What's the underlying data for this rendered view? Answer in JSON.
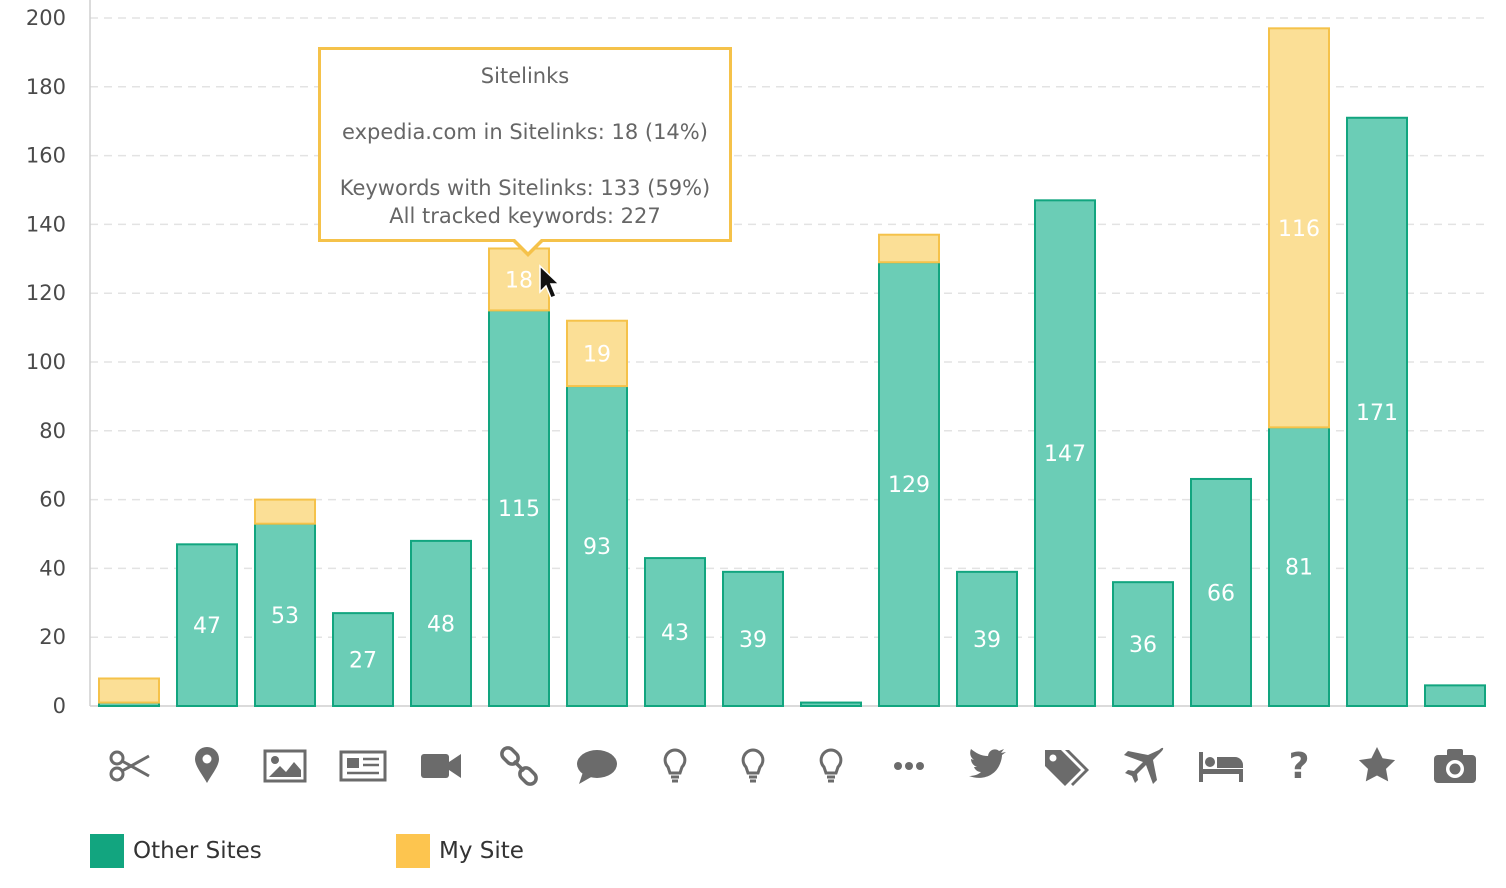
{
  "chart_data": {
    "type": "bar",
    "stacked": true,
    "categories": [
      "scissors-icon",
      "map-marker-icon",
      "image-icon",
      "newspaper-icon",
      "video-camera-icon",
      "link-icon",
      "comment-icon",
      "lightbulb-icon",
      "lightbulb-icon",
      "lightbulb-icon",
      "ellipsis-icon",
      "twitter-icon",
      "tags-icon",
      "plane-icon",
      "bed-icon",
      "question-icon",
      "star-icon",
      "camera-icon"
    ],
    "series": [
      {
        "name": "Other Sites",
        "color": "#6bcdb6",
        "stroke": "#12a57f",
        "values": [
          1,
          47,
          53,
          27,
          48,
          115,
          93,
          43,
          39,
          1,
          129,
          39,
          147,
          36,
          66,
          81,
          171,
          6
        ],
        "labels": [
          "",
          "47",
          "53",
          "27",
          "48",
          "115",
          "93",
          "43",
          "39",
          "",
          "129",
          "39",
          "147",
          "36",
          "66",
          "81",
          "171",
          ""
        ]
      },
      {
        "name": "My Site",
        "color": "#fbdf96",
        "stroke": "#f5c24a",
        "values": [
          7,
          0,
          7,
          0,
          0,
          18,
          19,
          0,
          0,
          0,
          8,
          0,
          0,
          0,
          0,
          116,
          0,
          0
        ],
        "labels": [
          "",
          "",
          "",
          "",
          "",
          "18",
          "19",
          "",
          "",
          "",
          "",
          "",
          "",
          "",
          "",
          "116",
          "",
          ""
        ]
      }
    ],
    "ylim": [
      0,
      200
    ],
    "yticks": [
      "0",
      "20",
      "40",
      "60",
      "80",
      "100",
      "120",
      "140",
      "160",
      "180",
      "200"
    ],
    "grid": true,
    "legend_position": "bottom-left"
  },
  "legend": [
    {
      "label": "Other Sites",
      "color": "#12a57f"
    },
    {
      "label": "My Site",
      "color": "#fdc54f"
    }
  ],
  "tooltip": {
    "title": "Sitelinks",
    "line1": "expedia.com in Sitelinks: 18 (14%)",
    "line2": "Keywords with Sitelinks: 133 (59%)",
    "line3": "All tracked keywords: 227"
  }
}
